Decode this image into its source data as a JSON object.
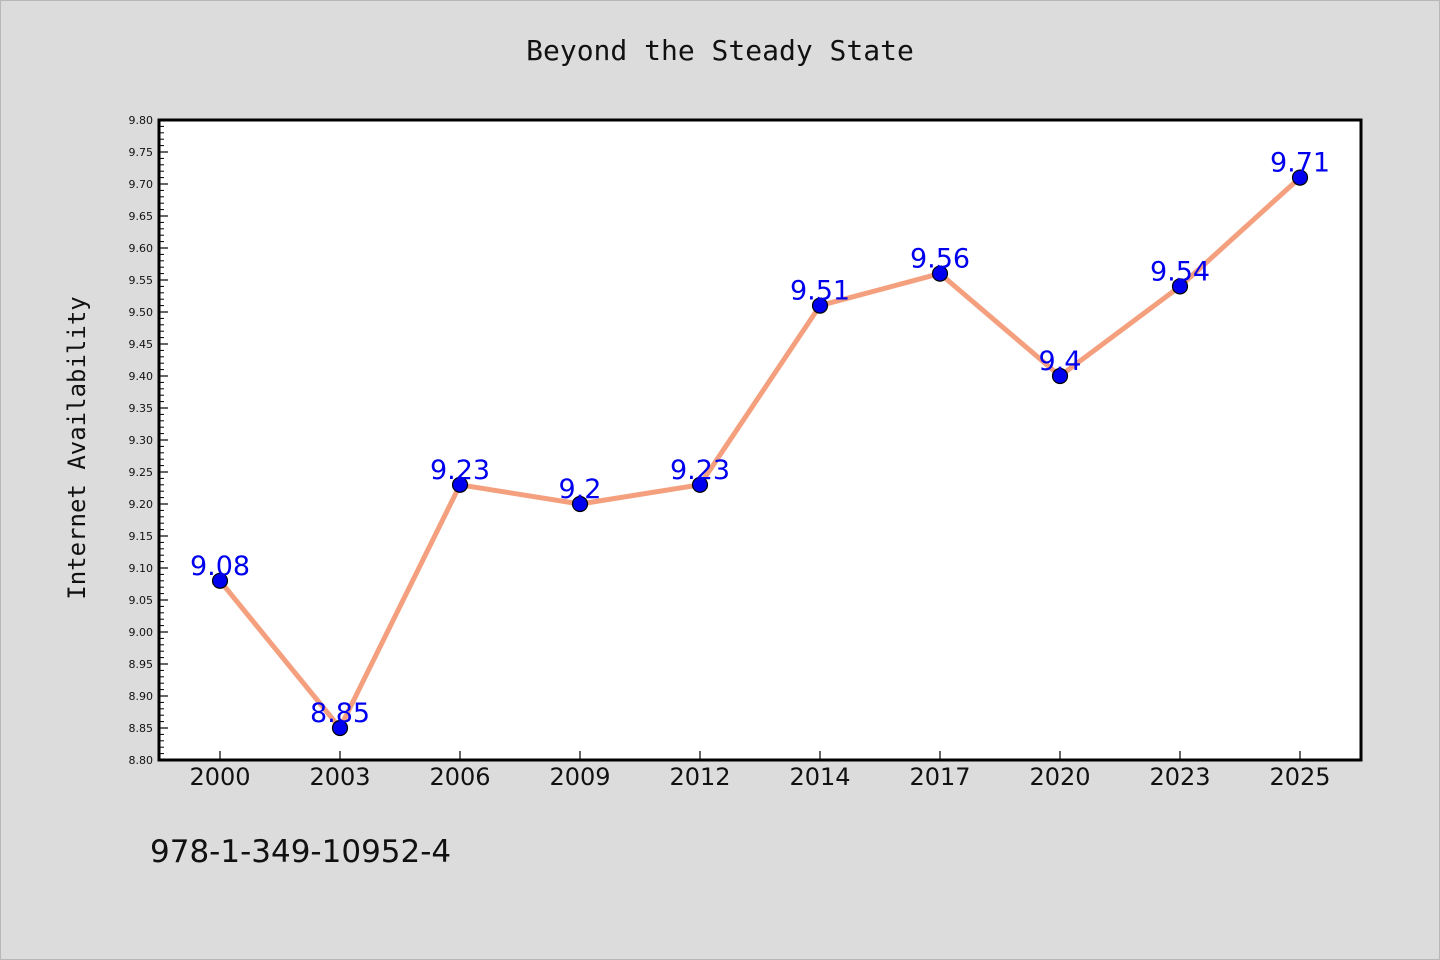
{
  "chart_data": {
    "type": "line",
    "title": "Beyond the Steady State",
    "ylabel": "Internet Availability",
    "xlabel": "",
    "categories": [
      "2000",
      "2003",
      "2006",
      "2009",
      "2012",
      "2014",
      "2017",
      "2020",
      "2023",
      "2025"
    ],
    "values": [
      9.08,
      8.85,
      9.23,
      9.2,
      9.23,
      9.51,
      9.56,
      9.4,
      9.54,
      9.71
    ],
    "ylim": [
      8.8,
      9.8
    ],
    "ytick_step": 0.05,
    "grid": false,
    "legend": "none",
    "colors": {
      "line": "#f4a07e",
      "marker": "#0000ee",
      "label": "#0000ee",
      "background": "#dcdcdc",
      "plot": "#ffffff"
    }
  },
  "footer": {
    "text": "978-1-349-10952-4"
  }
}
